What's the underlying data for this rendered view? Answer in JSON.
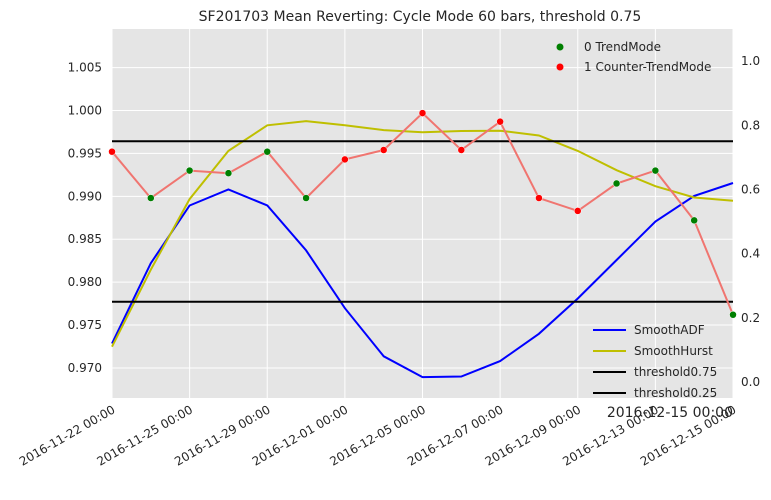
{
  "chart_data": {
    "type": "line",
    "title": "SF201703 Mean Reverting: Cycle Mode 60 bars, threshold 0.75",
    "x_offset_label": "2016-12-15 00:00",
    "x_tick_labels": [
      "2016-11-22 00:00",
      "2016-11-25 00:00",
      "2016-11-29 00:00",
      "2016-12-01 00:00",
      "2016-12-05 00:00",
      "2016-12-07 00:00",
      "2016-12-09 00:00",
      "2016-12-13 00:00",
      "2016-12-15 00:00"
    ],
    "x_dates": [
      "2016-11-22",
      "2016-11-23",
      "2016-11-25",
      "2016-11-28",
      "2016-11-29",
      "2016-11-30",
      "2016-12-01",
      "2016-12-02",
      "2016-12-05",
      "2016-12-06",
      "2016-12-07",
      "2016-12-08",
      "2016-12-09",
      "2016-12-12",
      "2016-12-13",
      "2016-12-14",
      "2016-12-15"
    ],
    "x_tick_positions": [
      0,
      2,
      4,
      6,
      8,
      10,
      12,
      14,
      16
    ],
    "y_left": {
      "ticks": [
        "0.970",
        "0.975",
        "0.980",
        "0.985",
        "0.990",
        "0.995",
        "1.000",
        "1.005"
      ],
      "lim": [
        0.9665,
        1.0095
      ]
    },
    "y_right": {
      "ticks": [
        "0.0",
        "0.2",
        "0.4",
        "0.6",
        "0.8",
        "1.0"
      ],
      "lim": [
        -0.05,
        1.1
      ]
    },
    "price": {
      "values": [
        0.9952,
        0.9898,
        0.993,
        0.9927,
        0.9952,
        0.9898,
        0.9943,
        0.9954,
        0.9997,
        0.9954,
        0.9987,
        0.9898,
        0.9883,
        0.9915,
        0.993,
        0.9872,
        0.9762
      ],
      "modes": [
        1,
        0,
        0,
        0,
        0,
        0,
        1,
        1,
        1,
        1,
        1,
        1,
        1,
        0,
        0,
        0,
        0
      ],
      "color": "#f07570"
    },
    "series": [
      {
        "name": "SmoothADF",
        "axis": "right",
        "color": "#0000ff",
        "values": [
          0.12,
          0.37,
          0.55,
          0.6,
          0.55,
          0.41,
          0.23,
          0.08,
          0.015,
          0.017,
          0.065,
          0.15,
          0.26,
          0.38,
          0.5,
          0.58,
          0.62
        ]
      },
      {
        "name": "SmoothHurst",
        "axis": "right",
        "color": "#bfbf00",
        "values": [
          0.11,
          0.35,
          0.57,
          0.72,
          0.8,
          0.813,
          0.8,
          0.785,
          0.778,
          0.782,
          0.783,
          0.768,
          0.72,
          0.66,
          0.61,
          0.575,
          0.565
        ]
      },
      {
        "name": "threshold0.75",
        "axis": "right",
        "color": "#000000",
        "values": [
          0.75,
          0.75,
          0.75,
          0.75,
          0.75,
          0.75,
          0.75,
          0.75,
          0.75,
          0.75,
          0.75,
          0.75,
          0.75,
          0.75,
          0.75,
          0.75,
          0.75
        ]
      },
      {
        "name": "threshold0.25",
        "axis": "right",
        "color": "#000000",
        "values": [
          0.25,
          0.25,
          0.25,
          0.25,
          0.25,
          0.25,
          0.25,
          0.25,
          0.25,
          0.25,
          0.25,
          0.25,
          0.25,
          0.25,
          0.25,
          0.25,
          0.25
        ]
      }
    ],
    "scatter_legend": [
      {
        "label": "0 TrendMode",
        "color": "#007f00"
      },
      {
        "label": "1 Counter-TrendMode",
        "color": "#ff0000"
      }
    ],
    "grid": true,
    "background": "#e5e5e5",
    "legend_placement": [
      "top-right",
      "bottom-right"
    ]
  }
}
